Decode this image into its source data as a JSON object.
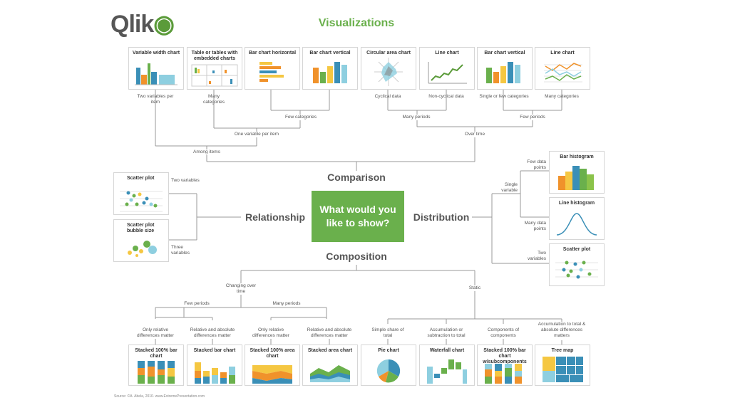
{
  "logo": {
    "text": "Qlik"
  },
  "title": "Visualizations",
  "center": {
    "text": "What would you like to show?"
  },
  "categories": {
    "comparison": "Comparison",
    "relationship": "Relationship",
    "distribution": "Distribution",
    "composition": "Composition"
  },
  "cards": {
    "variable_width": "Variable width chart",
    "table_embedded": "Table or tables with embedded charts",
    "bar_horizontal": "Bar chart horizontal",
    "bar_vertical_1": "Bar chart vertical",
    "circular_area": "Circular area chart",
    "line_chart_1": "Line chart",
    "bar_vertical_2": "Bar chart vertical",
    "line_chart_2": "Line chart",
    "scatter_1": "Scatter plot",
    "bubble": "Scatter plot bubble size",
    "bar_histogram": "Bar histogram",
    "line_histogram": "Line histogram",
    "scatter_2": "Scatter plot",
    "stacked100_bar": "Stacked 100% bar chart",
    "stacked_bar": "Stacked bar chart",
    "stacked100_area": "Stacked 100% area chart",
    "stacked_area": "Stacked area chart",
    "pie": "Pie chart",
    "waterfall": "Waterfall chart",
    "stacked100_sub": "Stacked 100% bar chart w/subcomponents",
    "tree_map": "Tree map"
  },
  "labels": {
    "two_vars_per_item": "Two variables per item",
    "many_categories_1": "Many categories",
    "cyclical": "Cyclical data",
    "non_cyclical": "Non-cyclical data",
    "single_few_categories": "Single or few categories",
    "many_categories_2": "Many categories",
    "few_categories": "Few categories",
    "many_periods_top": "Many periods",
    "few_periods_top": "Few periods",
    "one_var_per_item": "One variable per item",
    "over_time": "Over time",
    "among_items": "Among items",
    "two_variables": "Two variables",
    "three_variables": "Three variables",
    "few_data_points": "Few data points",
    "single_variable": "Single variable",
    "many_data_points": "Many data points",
    "two_variables_dist": "Two variables",
    "changing_over_time": "Changing over time",
    "static": "Static",
    "few_periods": "Few periods",
    "many_periods": "Many periods",
    "only_relative_1": "Only relative differences matter",
    "rel_abs_1": "Relative and absolute differences matter",
    "only_relative_2": "Only relative differences matter",
    "rel_abs_2": "Relative and absolute differences matter",
    "simple_share": "Simple share of total",
    "accumulation": "Accumulation or subtraction to total",
    "components": "Components of components",
    "accum_total": "Accumulation to total & absolute differences matters"
  },
  "source": "Source: ©A. Abela, 2010. www.ExtremePresentation.com",
  "colors": {
    "green": "#6ab04c",
    "orange": "#f0922b",
    "yellow": "#f5c742",
    "teal": "#3a8fb7",
    "lightblue": "#8ecfe0",
    "gray": "#888888"
  }
}
